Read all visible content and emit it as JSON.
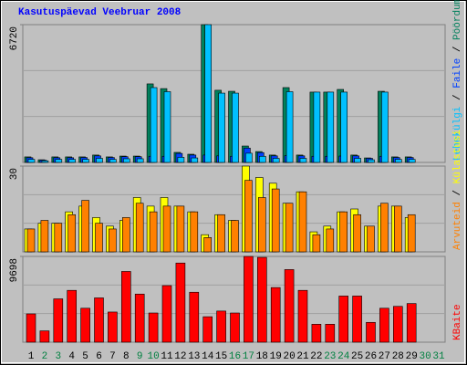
{
  "title": "Kasutuspäevad Veebruar 2008",
  "legend_separator": " / ",
  "categories": [
    1,
    2,
    3,
    4,
    5,
    6,
    7,
    8,
    9,
    10,
    11,
    12,
    13,
    14,
    15,
    16,
    17,
    18,
    19,
    20,
    21,
    22,
    23,
    24,
    25,
    26,
    27,
    28,
    29,
    30,
    31
  ],
  "category_color": "#000000",
  "weekend_color": "#008040",
  "weekends": [
    2,
    3,
    9,
    10,
    16,
    17,
    23,
    24,
    30,
    31
  ],
  "chart_data": [
    {
      "type": "bar",
      "ylim": [
        0,
        6720
      ],
      "yticks": [
        6720
      ],
      "series": [
        {
          "name": "Pöördumisi",
          "color": "#00805C",
          "values": [
            270,
            130,
            270,
            270,
            270,
            360,
            270,
            310,
            310,
            3830,
            3600,
            490,
            400,
            6720,
            3520,
            3470,
            800,
            530,
            360,
            3650,
            360,
            3430,
            3430,
            3560,
            360,
            220,
            3470,
            270,
            270,
            null,
            null
          ]
        },
        {
          "name": "Faile",
          "color": "#0040FF",
          "values": [
            230,
            110,
            230,
            230,
            240,
            320,
            240,
            280,
            280,
            300,
            300,
            440,
            360,
            360,
            320,
            300,
            700,
            480,
            320,
            330,
            320,
            300,
            300,
            310,
            320,
            200,
            300,
            240,
            240,
            null,
            null
          ]
        },
        {
          "name": "Lehekülgi",
          "color": "#00C0FF",
          "values": [
            150,
            80,
            150,
            150,
            150,
            200,
            150,
            180,
            180,
            3650,
            3450,
            250,
            220,
            6720,
            3380,
            3380,
            450,
            300,
            200,
            3450,
            200,
            3430,
            3430,
            3430,
            200,
            130,
            3430,
            150,
            150,
            null,
            null
          ]
        }
      ]
    },
    {
      "type": "bar",
      "ylim": [
        0,
        30
      ],
      "yticks": [
        30
      ],
      "series": [
        {
          "name": "Külastusi",
          "color": "#FFFF00",
          "values": [
            8,
            10,
            10,
            14,
            16,
            12,
            9,
            11,
            19,
            16,
            19,
            16,
            14,
            6,
            13,
            11,
            30,
            26,
            24,
            17,
            21,
            7,
            9,
            14,
            15,
            9,
            16,
            16,
            12,
            null,
            null
          ]
        },
        {
          "name": "Arvuteid",
          "color": "#FF8000",
          "values": [
            8,
            11,
            10,
            13,
            18,
            10,
            8,
            12,
            17,
            14,
            16,
            16,
            14,
            5,
            13,
            11,
            25,
            19,
            22,
            17,
            21,
            6,
            8,
            14,
            13,
            9,
            17,
            16,
            13,
            null,
            null
          ]
        }
      ]
    },
    {
      "type": "bar",
      "ylim": [
        0,
        9698
      ],
      "yticks": [
        9698
      ],
      "series": [
        {
          "name": "KBaite",
          "color": "#FF0000",
          "values": [
            3200,
            1280,
            4900,
            5860,
            3840,
            5010,
            3410,
            8000,
            5440,
            3300,
            6400,
            8950,
            5650,
            2880,
            3520,
            3300,
            9698,
            9590,
            6180,
            8210,
            5860,
            2030,
            2030,
            5220,
            5220,
            2240,
            3840,
            4050,
            4370,
            null,
            null
          ]
        }
      ]
    }
  ]
}
